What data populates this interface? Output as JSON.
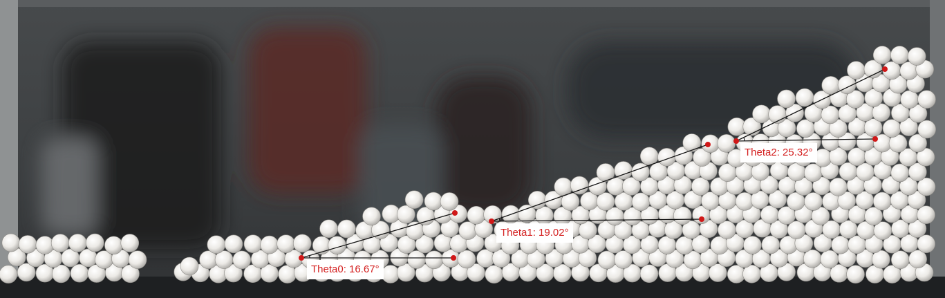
{
  "colors": {
    "marker": "#d01818",
    "line": "#141414",
    "label_text": "#d42020",
    "label_bg": "#ffffff"
  },
  "annotations": [
    {
      "id": "theta0",
      "label": "Theta0: 16.67°",
      "angle_deg": 16.67
    },
    {
      "id": "theta1",
      "label": "Theta1: 19.02°",
      "angle_deg": 19.02
    },
    {
      "id": "theta2",
      "label": "Theta2: 25.32°",
      "angle_deg": 25.32
    }
  ]
}
